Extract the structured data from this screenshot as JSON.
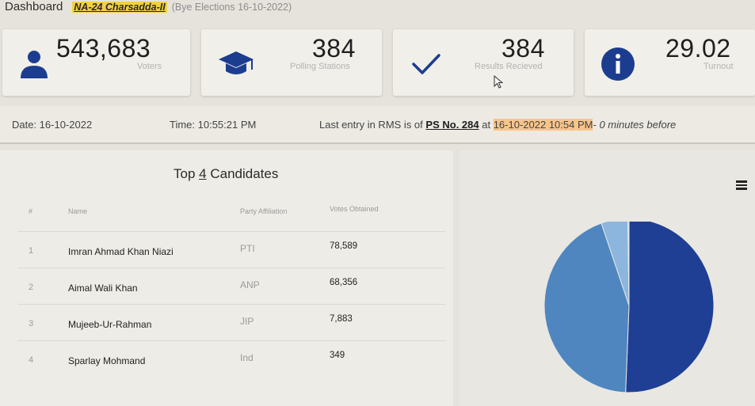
{
  "header": {
    "title": "Dashboard",
    "constituency": "NA-24 Charsadda-II",
    "subtitle": "(Bye Elections 16-10-2022)"
  },
  "stats": [
    {
      "value": "543,683",
      "label": "Voters",
      "icon": "user-icon"
    },
    {
      "value": "384",
      "label": "Polling Stations",
      "icon": "graduation-cap-icon"
    },
    {
      "value": "384",
      "label": "Results Recieved",
      "icon": "checkmark-icon"
    },
    {
      "value": "29.02",
      "label": "Turnout",
      "icon": "info-icon"
    }
  ],
  "info": {
    "date": "Date: 16-10-2022",
    "time": "Time: 10:55:21 PM",
    "last_entry_prefix": "Last entry in RMS is of",
    "polling_station": "PS No. 284",
    "at": "at",
    "entry_time": "16-10-2022 10:54 PM",
    "separator": "-",
    "minutes_before": "0 minutes before"
  },
  "candidates": {
    "title_prefix": "Top",
    "title_count": "4",
    "title_suffix": "Candidates",
    "columns": [
      "#",
      "Name",
      "Party Affiliation",
      "Votes Obtained"
    ],
    "rows": [
      {
        "num": "1",
        "name": "Imran Ahmad Khan Niazi",
        "party": "PTI",
        "votes": "78,589"
      },
      {
        "num": "2",
        "name": "Aimal Wali Khan",
        "party": "ANP",
        "votes": "68,356"
      },
      {
        "num": "3",
        "name": "Mujeeb-Ur-Rahman",
        "party": "JIP",
        "votes": "7,883"
      },
      {
        "num": "4",
        "name": "Sparlay Mohmand",
        "party": "Ind",
        "votes": "349"
      }
    ]
  },
  "colors": {
    "accent_dark": "#1c3d8f",
    "highlight_yellow": "#f3cf45",
    "highlight_orange": "#f7c58a"
  },
  "chart_data": {
    "type": "pie",
    "categories": [
      "Imran Ahmad Khan Niazi",
      "Aimal Wali Khan",
      "Mujeeb-Ur-Rahman",
      "Sparlay Mohmand"
    ],
    "values": [
      78589,
      68356,
      7883,
      349
    ],
    "colors": [
      "#1e3f94",
      "#4f86c0",
      "#8cb6dd",
      "#c4d9ee"
    ]
  }
}
